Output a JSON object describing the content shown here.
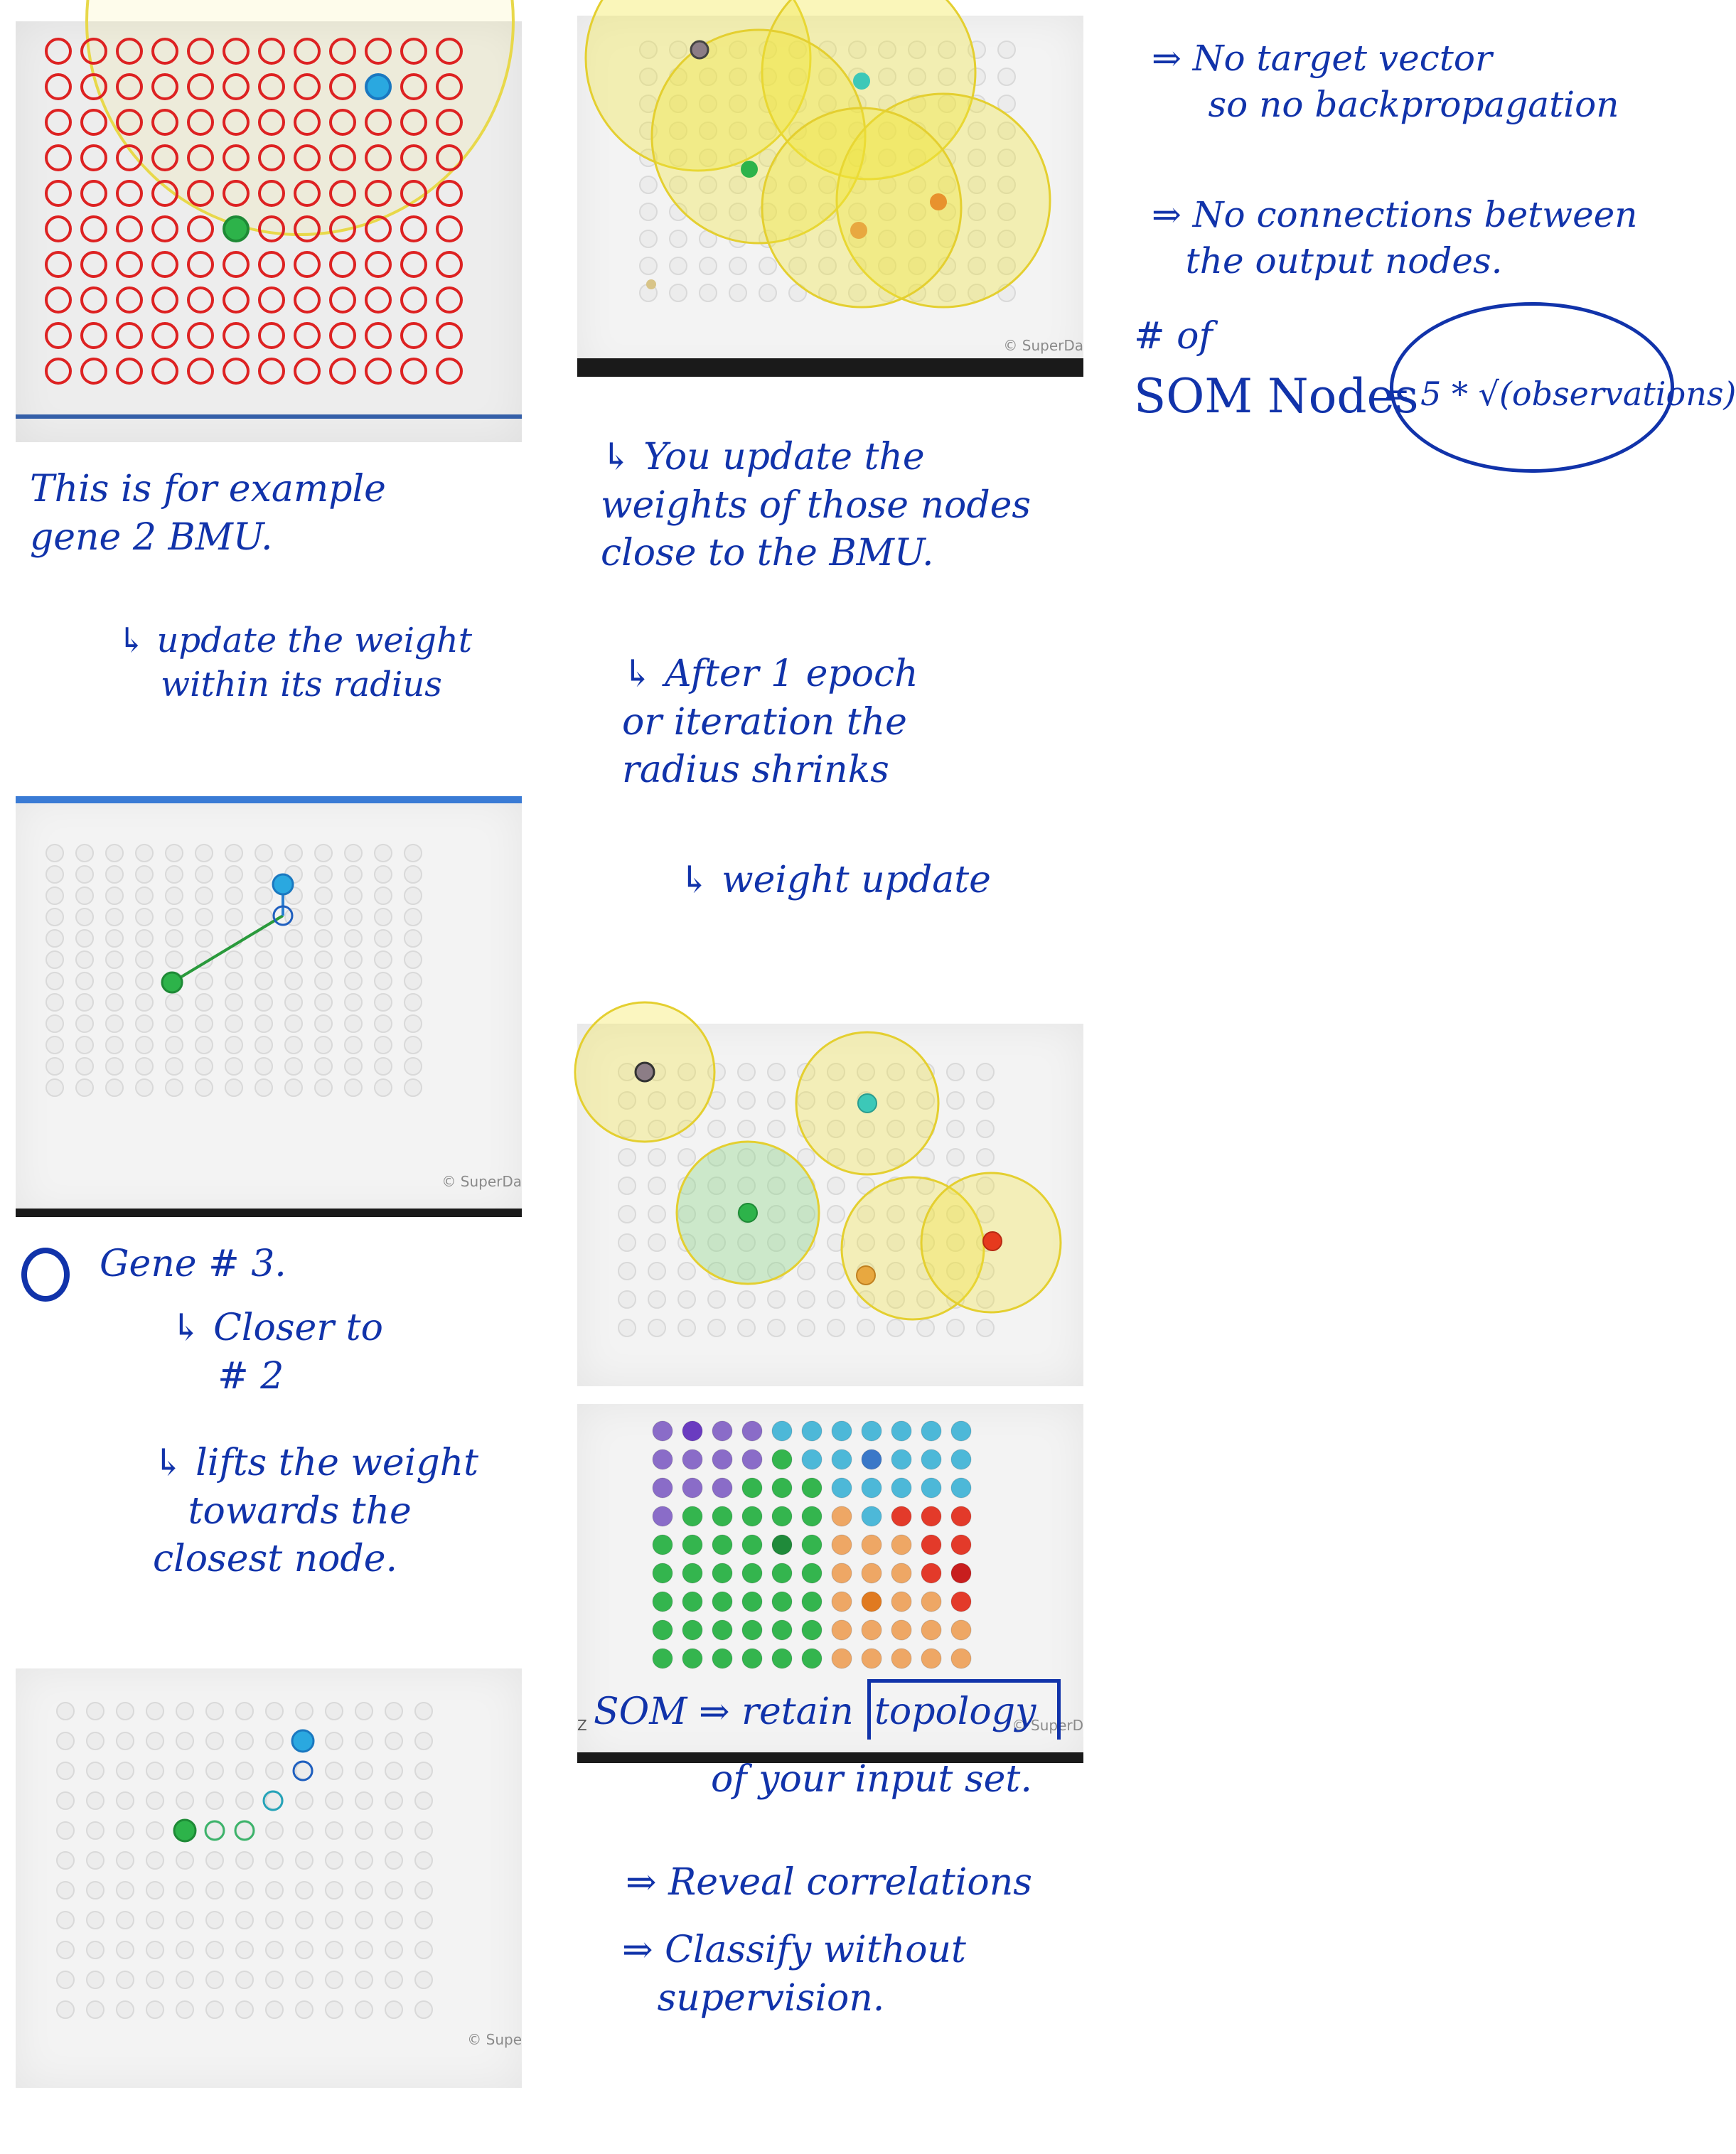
{
  "colors": {
    "ink": "#1133aa",
    "empty_node": "#d9d9d9",
    "red_ring": "#dd2222",
    "bmu_blue": "#2aa8e0",
    "bmu_green": "#2db34a",
    "radius_yellow": "#f2e43a"
  },
  "panels": {
    "p1": {
      "watermark": ""
    },
    "p2": {
      "watermark": "© SuperDa"
    },
    "p3": {
      "watermark": "© Supe"
    },
    "p4": {
      "watermark": "© SuperDa"
    },
    "p5": {
      "watermark": ""
    },
    "p6": {
      "watermark": "© SuperD",
      "edge_letter": "Z"
    }
  },
  "notes": {
    "bmu_example": "This is for example\ngene 2 BMU.",
    "update_radius": "↳ update the weight\n    within its radius",
    "gene3": "Gene # 3.",
    "closer": "↳ Closer to\n    # 2",
    "lifts": "↳ lifts the weight\n   towards the\nclosest node.",
    "update_close": "↳ You update the\nweights of those nodes\nclose to the BMU.",
    "after_epoch": "↳ After 1 epoch\nor iteration the\nradius shrinks",
    "weight_update": "↳ weight update",
    "no_target": "⇒ No target vector\n     so no backpropagation",
    "no_connections": "⇒ No connections between\n   the output nodes.",
    "num_of": "# of",
    "som_nodes": "SOM Nodes",
    "formula": "= 5 * √(observations)",
    "som_retain": "SOM ⇒ retain",
    "topology": "topology",
    "input_set": "of your input set.",
    "reveal": "⇒ Reveal correlations",
    "classify": "⇒ Classify without\n   supervision."
  }
}
